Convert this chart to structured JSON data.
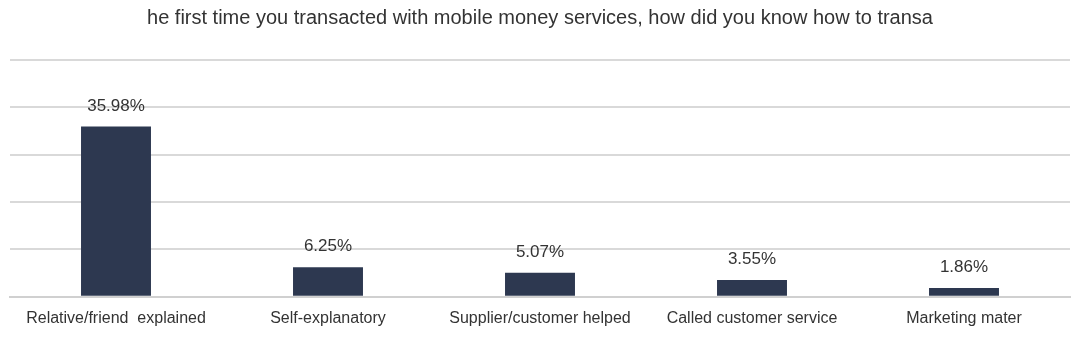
{
  "chart_data": {
    "type": "bar",
    "title": "he first time you transacted with mobile money services, how did you know how to transa",
    "categories": [
      "Relative/friend  explained",
      "Self-explanatory",
      "Supplier/customer helped",
      "Called customer service",
      "Marketing mater"
    ],
    "values": [
      35.98,
      6.25,
      5.07,
      3.55,
      1.86
    ],
    "color": "#2d3850",
    "value_labels": [
      "35.98%",
      "6.25%",
      "5.07%",
      "3.55%",
      "1.86%"
    ],
    "ylim": [
      0,
      50
    ],
    "yticks": [
      {
        "value": 0,
        "label": null
      },
      {
        "value": 10,
        "label": null
      },
      {
        "value": 20,
        "label": null
      },
      {
        "value": 30,
        "label": null
      },
      {
        "value": 40,
        "label": null
      },
      {
        "value": 50,
        "label": null
      }
    ],
    "grid": "y",
    "tick_labels": "x",
    "legend": false
  }
}
